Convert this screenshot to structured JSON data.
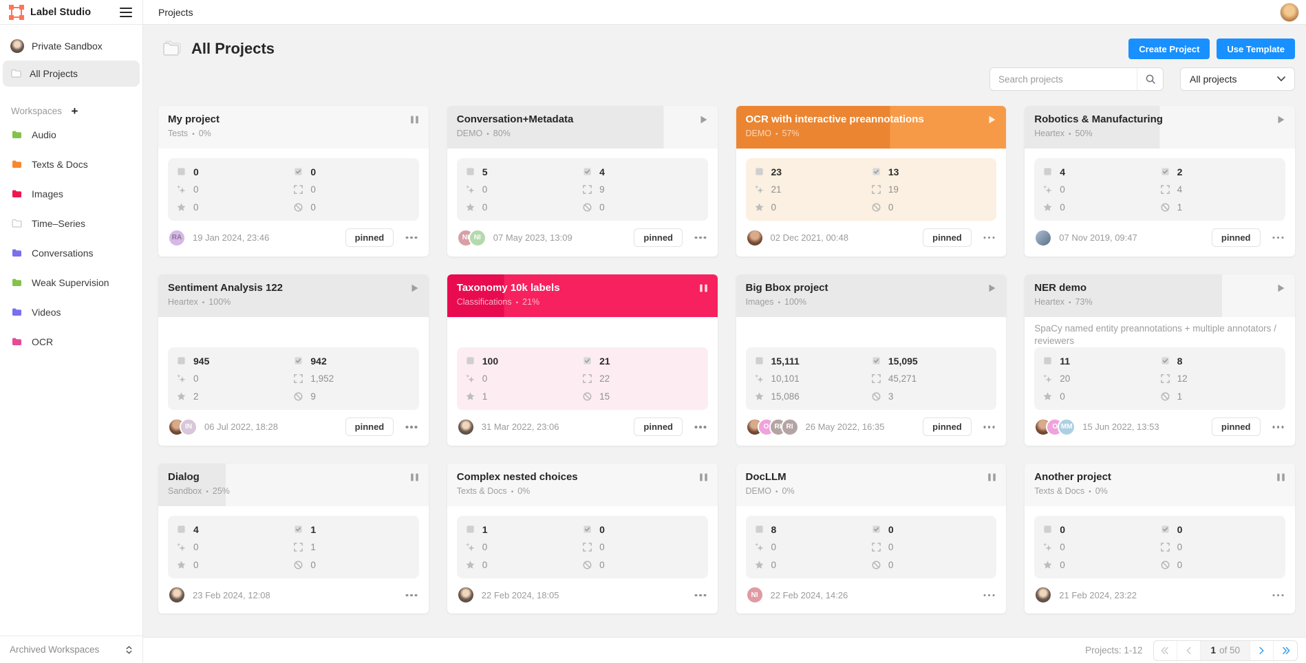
{
  "topbar": {
    "brand": "Label Studio",
    "page": "Projects"
  },
  "sidebar": {
    "private_sandbox": "Private Sandbox",
    "all_projects": "All Projects",
    "workspaces_label": "Workspaces",
    "workspaces": [
      {
        "label": "Audio",
        "color": "#85c24b"
      },
      {
        "label": "Texts & Docs",
        "color": "#f7882f"
      },
      {
        "label": "Images",
        "color": "#f0164e"
      },
      {
        "label": "Time–Series",
        "color": "#ffffff",
        "outline": true
      },
      {
        "label": "Conversations",
        "color": "#7a6ff0"
      },
      {
        "label": "Weak Supervision",
        "color": "#85c24b"
      },
      {
        "label": "Videos",
        "color": "#7a6ff0"
      },
      {
        "label": "OCR",
        "color": "#e54b97"
      }
    ],
    "archived": "Archived Workspaces"
  },
  "header": {
    "title": "All Projects",
    "create_button": "Create Project",
    "template_button": "Use Template",
    "search_placeholder": "Search projects",
    "search_value": "",
    "filter_value": "All projects"
  },
  "labels": {
    "pinned": "pinned"
  },
  "colors": {
    "accent": "#1890ff",
    "gray_fill": "#e9e9e9",
    "gray_rest": "#f6f6f6",
    "gray_zero": "#f7f7f7",
    "orange_fill": "#eb8531",
    "orange_rest": "#f79a47",
    "red_fill": "#e80b4f",
    "red_rest": "#f6215e"
  },
  "cards": [
    {
      "title": "My project",
      "workspace": "Tests",
      "percent": "0%",
      "state": "pause",
      "theme": "gray",
      "fill": 0,
      "description": "",
      "stats": {
        "tasks": "0",
        "completed": "0",
        "predictions": "0",
        "annotations": "0",
        "starred": "0",
        "skipped": "0"
      },
      "avatars": [
        {
          "type": "initials",
          "text": "RA",
          "bg": "#d5b8e6",
          "fg": "#8b7796"
        }
      ],
      "date": "19 Jan 2024, 23:46",
      "pinned": true
    },
    {
      "title": "Conversation+Metadata",
      "workspace": "DEMO",
      "percent": "80%",
      "state": "play",
      "theme": "gray",
      "fill": 80,
      "description": "",
      "stats": {
        "tasks": "5",
        "completed": "4",
        "predictions": "0",
        "annotations": "9",
        "starred": "0",
        "skipped": "0"
      },
      "avatars": [
        {
          "type": "initials",
          "text": "NI",
          "bg": "#d89fa6",
          "fg": "#ffffff"
        },
        {
          "type": "initials",
          "text": "NI",
          "bg": "#b5d9ae",
          "fg": "#ffffff"
        }
      ],
      "date": "07 May 2023, 13:09",
      "pinned": true
    },
    {
      "title": "OCR with interactive preannotations",
      "workspace": "DEMO",
      "percent": "57%",
      "state": "play",
      "theme": "orange",
      "fill": 57,
      "description": "",
      "stats": {
        "tasks": "23",
        "completed": "13",
        "predictions": "21",
        "annotations": "19",
        "starred": "0",
        "skipped": "0"
      },
      "avatars": [
        {
          "type": "photo",
          "variant": "woman"
        }
      ],
      "date": "02 Dec 2021, 00:48",
      "pinned": true
    },
    {
      "title": "Robotics & Manufacturing",
      "workspace": "Heartex",
      "percent": "50%",
      "state": "play",
      "theme": "gray",
      "fill": 50,
      "description": "",
      "stats": {
        "tasks": "4",
        "completed": "2",
        "predictions": "0",
        "annotations": "4",
        "starred": "0",
        "skipped": "1"
      },
      "avatars": [
        {
          "type": "photo",
          "variant": "blue"
        }
      ],
      "date": "07 Nov 2019, 09:47",
      "pinned": true
    },
    {
      "title": "Sentiment Analysis 122",
      "workspace": "Heartex",
      "percent": "100%",
      "state": "play",
      "theme": "gray",
      "fill": 100,
      "description": "",
      "stats": {
        "tasks": "945",
        "completed": "942",
        "predictions": "0",
        "annotations": "1,952",
        "starred": "2",
        "skipped": "9"
      },
      "avatars": [
        {
          "type": "photo",
          "variant": "woman"
        },
        {
          "type": "initials",
          "text": "IN",
          "bg": "#d9c6d9",
          "fg": "#ffffff"
        }
      ],
      "date": "06 Jul 2022, 18:28",
      "pinned": true
    },
    {
      "title": "Taxonomy 10k labels",
      "workspace": "Classifications",
      "percent": "21%",
      "state": "pause",
      "theme": "red",
      "fill": 21,
      "description": "",
      "stats": {
        "tasks": "100",
        "completed": "21",
        "predictions": "0",
        "annotations": "22",
        "starred": "1",
        "skipped": "15"
      },
      "avatars": [
        {
          "type": "photo",
          "variant": "girl"
        }
      ],
      "date": "31 Mar 2022, 23:06",
      "pinned": true
    },
    {
      "title": "Big Bbox project",
      "workspace": "Images",
      "percent": "100%",
      "state": "play",
      "theme": "gray",
      "fill": 100,
      "description": "",
      "stats": {
        "tasks": "15,111",
        "completed": "15,095",
        "predictions": "10,101",
        "annotations": "45,271",
        "starred": "15,086",
        "skipped": "3"
      },
      "avatars": [
        {
          "type": "photo",
          "variant": "woman"
        },
        {
          "type": "initials",
          "text": "O",
          "bg": "#efa3dc",
          "fg": "#ffffff"
        },
        {
          "type": "initials",
          "text": "RI",
          "bg": "#b5a4a4",
          "fg": "#ffffff"
        },
        {
          "type": "initials",
          "text": "RI",
          "bg": "#b5a4a4",
          "fg": "#ffffff"
        }
      ],
      "date": "26 May 2022, 16:35",
      "pinned": true
    },
    {
      "title": "NER demo",
      "workspace": "Heartex",
      "percent": "73%",
      "state": "play",
      "theme": "gray",
      "fill": 73,
      "description": "SpaCy named entity preannotations + multiple annotators / reviewers",
      "stats": {
        "tasks": "11",
        "completed": "8",
        "predictions": "20",
        "annotations": "12",
        "starred": "0",
        "skipped": "1"
      },
      "avatars": [
        {
          "type": "photo",
          "variant": "woman"
        },
        {
          "type": "initials",
          "text": "O",
          "bg": "#efa3dc",
          "fg": "#ffffff"
        },
        {
          "type": "initials",
          "text": "MM",
          "bg": "#abd0e2",
          "fg": "#ffffff"
        }
      ],
      "date": "15 Jun 2022, 13:53",
      "pinned": true
    },
    {
      "title": "Dialog",
      "workspace": "Sandbox",
      "percent": "25%",
      "state": "pause",
      "theme": "gray",
      "fill": 25,
      "description": "",
      "stats": {
        "tasks": "4",
        "completed": "1",
        "predictions": "0",
        "annotations": "1",
        "starred": "0",
        "skipped": "0"
      },
      "avatars": [
        {
          "type": "photo",
          "variant": "girl"
        }
      ],
      "date": "23 Feb 2024, 12:08",
      "pinned": false
    },
    {
      "title": "Complex nested choices",
      "workspace": "Texts & Docs",
      "percent": "0%",
      "state": "pause",
      "theme": "gray",
      "fill": 0,
      "description": "",
      "stats": {
        "tasks": "1",
        "completed": "0",
        "predictions": "0",
        "annotations": "0",
        "starred": "0",
        "skipped": "0"
      },
      "avatars": [
        {
          "type": "photo",
          "variant": "girl"
        }
      ],
      "date": "22 Feb 2024, 18:05",
      "pinned": false
    },
    {
      "title": "DocLLM",
      "workspace": "DEMO",
      "percent": "0%",
      "state": "pause",
      "theme": "gray",
      "fill": 0,
      "description": "",
      "stats": {
        "tasks": "8",
        "completed": "0",
        "predictions": "0",
        "annotations": "0",
        "starred": "0",
        "skipped": "0"
      },
      "avatars": [
        {
          "type": "initials",
          "text": "NI",
          "bg": "#e09aa2",
          "fg": "#ffffff"
        }
      ],
      "date": "22 Feb 2024, 14:26",
      "pinned": false
    },
    {
      "title": "Another project",
      "workspace": "Texts & Docs",
      "percent": "0%",
      "state": "pause",
      "theme": "gray",
      "fill": 0,
      "description": "",
      "stats": {
        "tasks": "0",
        "completed": "0",
        "predictions": "0",
        "annotations": "0",
        "starred": "0",
        "skipped": "0"
      },
      "avatars": [
        {
          "type": "photo",
          "variant": "girl"
        }
      ],
      "date": "21 Feb 2024, 23:22",
      "pinned": false
    }
  ],
  "footer": {
    "projects_range": "Projects: 1-12",
    "page_current": "1",
    "page_of": "of 50"
  }
}
